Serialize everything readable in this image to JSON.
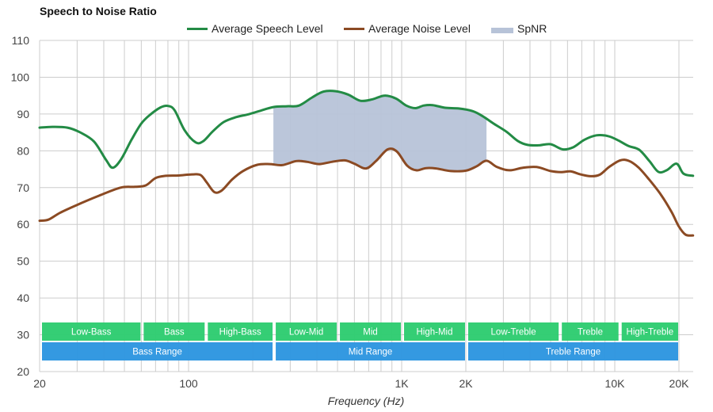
{
  "chart_data": {
    "type": "line",
    "title": "Speech to Noise Ratio",
    "xlabel": "Frequency (Hz)",
    "ylabel": "",
    "xscale": "log",
    "xlim": [
      20,
      23300
    ],
    "ylim": [
      20,
      110
    ],
    "grid": true,
    "legend_position": "top-center",
    "x_ticks": [
      {
        "value": 20,
        "label": "20"
      },
      {
        "value": 100,
        "label": "100"
      },
      {
        "value": 1000,
        "label": "1K"
      },
      {
        "value": 2000,
        "label": "2K"
      },
      {
        "value": 10000,
        "label": "10K"
      },
      {
        "value": 20000,
        "label": "20K"
      }
    ],
    "y_ticks": [
      20,
      30,
      40,
      50,
      60,
      70,
      80,
      90,
      100,
      110
    ],
    "legend": [
      {
        "name": "Average Speech Level",
        "color": "#238b45",
        "kind": "line"
      },
      {
        "name": "Average Noise Level",
        "color": "#8b4a23",
        "kind": "line"
      },
      {
        "name": "SpNR",
        "color": "#b7c3d8",
        "kind": "area"
      }
    ],
    "series": [
      {
        "name": "Average Speech Level",
        "color": "#238b45",
        "points": [
          [
            20,
            86.3
          ],
          [
            23,
            86.5
          ],
          [
            27,
            86.3
          ],
          [
            31,
            85
          ],
          [
            36,
            82.5
          ],
          [
            41,
            77.5
          ],
          [
            44,
            75.4
          ],
          [
            48,
            77.5
          ],
          [
            54,
            83
          ],
          [
            60,
            87.4
          ],
          [
            66,
            89.8
          ],
          [
            74,
            91.8
          ],
          [
            80,
            92.2
          ],
          [
            86,
            91
          ],
          [
            96,
            85.5
          ],
          [
            108,
            82.3
          ],
          [
            117,
            82.6
          ],
          [
            130,
            85.3
          ],
          [
            146,
            87.8
          ],
          [
            166,
            89.1
          ],
          [
            190,
            89.9
          ],
          [
            215,
            90.8
          ],
          [
            250,
            91.9
          ],
          [
            290,
            92.1
          ],
          [
            330,
            92.3
          ],
          [
            380,
            94.5
          ],
          [
            430,
            96.1
          ],
          [
            490,
            96.2
          ],
          [
            560,
            95.3
          ],
          [
            640,
            93.6
          ],
          [
            730,
            94
          ],
          [
            830,
            95
          ],
          [
            940,
            94.2
          ],
          [
            1050,
            92.3
          ],
          [
            1160,
            91.6
          ],
          [
            1270,
            92.3
          ],
          [
            1400,
            92.4
          ],
          [
            1600,
            91.7
          ],
          [
            1850,
            91.5
          ],
          [
            2150,
            90.8
          ],
          [
            2400,
            89.4
          ],
          [
            2700,
            87.4
          ],
          [
            3100,
            85.2
          ],
          [
            3500,
            82.7
          ],
          [
            3900,
            81.6
          ],
          [
            4400,
            81.5
          ],
          [
            5000,
            81.8
          ],
          [
            5700,
            80.4
          ],
          [
            6400,
            81
          ],
          [
            7200,
            83
          ],
          [
            8200,
            84.2
          ],
          [
            9300,
            84
          ],
          [
            10400,
            82.8
          ],
          [
            11600,
            81.3
          ],
          [
            13000,
            80.3
          ],
          [
            14500,
            77.3
          ],
          [
            16000,
            74.3
          ],
          [
            17500,
            74.7
          ],
          [
            19500,
            76.5
          ],
          [
            21000,
            73.8
          ],
          [
            23300,
            73.2
          ]
        ]
      },
      {
        "name": "Average Noise Level",
        "color": "#8b4a23",
        "points": [
          [
            20,
            61
          ],
          [
            22,
            61.3
          ],
          [
            25,
            63.2
          ],
          [
            30,
            65.3
          ],
          [
            38,
            67.8
          ],
          [
            48,
            70
          ],
          [
            56,
            70.2
          ],
          [
            63,
            70.6
          ],
          [
            70,
            72.6
          ],
          [
            78,
            73.2
          ],
          [
            90,
            73.3
          ],
          [
            104,
            73.6
          ],
          [
            114,
            73.4
          ],
          [
            122,
            71.3
          ],
          [
            132,
            68.8
          ],
          [
            143,
            69.2
          ],
          [
            160,
            72.2
          ],
          [
            180,
            74.5
          ],
          [
            210,
            76.2
          ],
          [
            240,
            76.4
          ],
          [
            275,
            76.1
          ],
          [
            320,
            77.2
          ],
          [
            360,
            77
          ],
          [
            410,
            76.4
          ],
          [
            470,
            77
          ],
          [
            540,
            77.4
          ],
          [
            600,
            76.5
          ],
          [
            680,
            75.2
          ],
          [
            760,
            77.3
          ],
          [
            860,
            80.4
          ],
          [
            950,
            79.8
          ],
          [
            1060,
            76
          ],
          [
            1170,
            74.7
          ],
          [
            1300,
            75.3
          ],
          [
            1450,
            75.2
          ],
          [
            1700,
            74.5
          ],
          [
            2000,
            74.6
          ],
          [
            2250,
            75.8
          ],
          [
            2500,
            77.3
          ],
          [
            2800,
            75.6
          ],
          [
            3200,
            74.7
          ],
          [
            3700,
            75.4
          ],
          [
            4300,
            75.6
          ],
          [
            5000,
            74.5
          ],
          [
            5600,
            74.2
          ],
          [
            6200,
            74.4
          ],
          [
            6900,
            73.6
          ],
          [
            7700,
            73.1
          ],
          [
            8500,
            73.5
          ],
          [
            9400,
            75.6
          ],
          [
            10600,
            77.4
          ],
          [
            11600,
            77.3
          ],
          [
            12900,
            75.5
          ],
          [
            14500,
            72.2
          ],
          [
            16500,
            68
          ],
          [
            18500,
            63.3
          ],
          [
            20000,
            59.4
          ],
          [
            21500,
            57.2
          ],
          [
            23300,
            57.0
          ]
        ]
      }
    ],
    "spnr_area": {
      "from_hz": 250,
      "to_hz": 2500,
      "label": "SpNR"
    },
    "bands": {
      "row1": [
        {
          "label": "Low-Bass",
          "from": 20,
          "to": 60
        },
        {
          "label": "Bass",
          "from": 60,
          "to": 120
        },
        {
          "label": "High-Bass",
          "from": 120,
          "to": 250
        },
        {
          "label": "Low-Mid",
          "from": 250,
          "to": 500
        },
        {
          "label": "Mid",
          "from": 500,
          "to": 1000
        },
        {
          "label": "High-Mid",
          "from": 1000,
          "to": 2000
        },
        {
          "label": "Low-Treble",
          "from": 2000,
          "to": 5500
        },
        {
          "label": "Treble",
          "from": 5500,
          "to": 10500
        },
        {
          "label": "High-Treble",
          "from": 10500,
          "to": 20000
        }
      ],
      "row2": [
        {
          "label": "Bass Range",
          "from": 20,
          "to": 250
        },
        {
          "label": "Mid Range",
          "from": 250,
          "to": 2000
        },
        {
          "label": "Treble Range",
          "from": 2000,
          "to": 20000
        }
      ],
      "row1_color": "#2ecc71",
      "row2_color": "#2d96e0"
    }
  }
}
